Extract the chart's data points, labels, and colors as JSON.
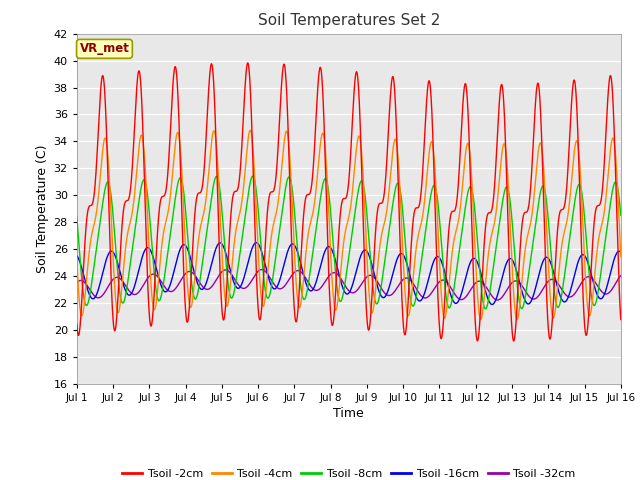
{
  "title": "Soil Temperatures Set 2",
  "xlabel": "Time",
  "ylabel": "Soil Temperature (C)",
  "xlim": [
    0,
    15
  ],
  "ylim": [
    16,
    42
  ],
  "yticks": [
    16,
    18,
    20,
    22,
    24,
    26,
    28,
    30,
    32,
    34,
    36,
    38,
    40,
    42
  ],
  "xtick_labels": [
    "Jul 1",
    "Jul 2",
    "Jul 3",
    "Jul 4",
    "Jul 5",
    "Jul 6",
    "Jul 7",
    "Jul 8",
    "Jul 9",
    "Jul 10",
    "Jul 11",
    "Jul 12",
    "Jul 13",
    "Jul 14",
    "Jul 15",
    "Jul 16"
  ],
  "annotation_text": "VR_met",
  "annotation_bg": "#FFFFBB",
  "annotation_border": "#999900",
  "plot_bg": "#E8E8E8",
  "fig_bg": "#FFFFFF",
  "series": {
    "Tsoil -2cm": {
      "color": "#FF0000",
      "lw": 1.0
    },
    "Tsoil -4cm": {
      "color": "#FF8800",
      "lw": 1.0
    },
    "Tsoil -8cm": {
      "color": "#00CC00",
      "lw": 1.0
    },
    "Tsoil -16cm": {
      "color": "#0000EE",
      "lw": 1.0
    },
    "Tsoil -32cm": {
      "color": "#9900AA",
      "lw": 1.0
    }
  },
  "num_days": 15,
  "pts_per_day": 200
}
